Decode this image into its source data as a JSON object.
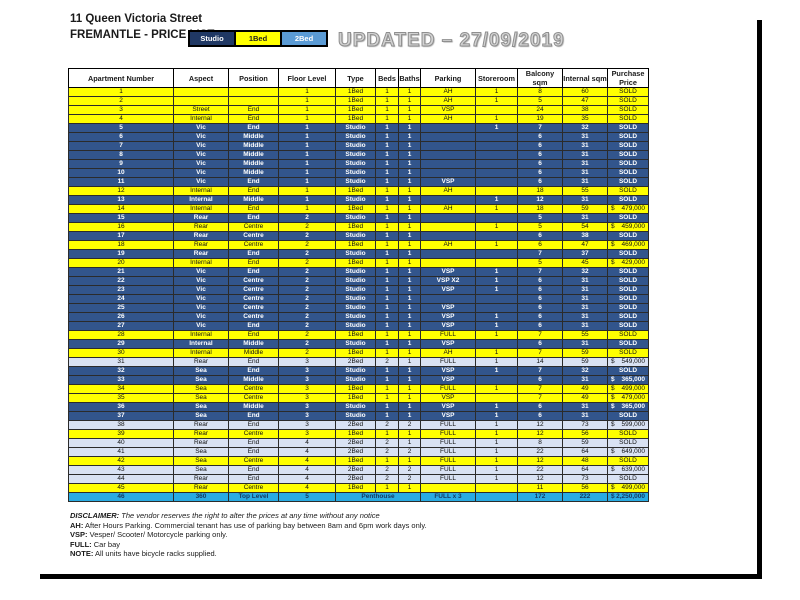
{
  "page": {
    "title_line1": "11 Queen Victoria Street",
    "title_line2": "FREMANTLE - PRICE LIST",
    "updated_stamp": "UPDATED – 27/09/2019",
    "legend": [
      {
        "label": "Studio",
        "bg": "#203864",
        "fg": "#FFFFFF"
      },
      {
        "label": "1Bed",
        "bg": "#FFFF00",
        "fg": "#1F1F1F"
      },
      {
        "label": "2Bed",
        "bg": "#5B9BD5",
        "fg": "#FFFFFF"
      }
    ],
    "colors": {
      "studio_row": "#32558C",
      "one_bed_row": "#FFFF00",
      "two_bed_row": "#D9E2F3",
      "penthouse_row": "#29ABE2"
    }
  },
  "table": {
    "columns": [
      "Apartment Number",
      "Aspect",
      "Position",
      "Floor Level",
      "Type",
      "Beds",
      "Baths",
      "Parking",
      "Storeroom",
      "Balcony sqm",
      "Internal sqm",
      "Purchase Price"
    ],
    "rows": [
      {
        "num": "1",
        "aspect": "",
        "position": "",
        "floor": "1",
        "type": "1Bed",
        "beds": "1",
        "baths": "1",
        "parking": "AH",
        "storeroom": "1",
        "balcony": "8",
        "internal": "60",
        "price": "SOLD"
      },
      {
        "num": "2",
        "aspect": "",
        "position": "",
        "floor": "1",
        "type": "1Bed",
        "beds": "1",
        "baths": "1",
        "parking": "AH",
        "storeroom": "1",
        "balcony": "5",
        "internal": "47",
        "price": "SOLD"
      },
      {
        "num": "3",
        "aspect": "Street",
        "position": "End",
        "floor": "1",
        "type": "1Bed",
        "beds": "1",
        "baths": "1",
        "parking": "VSP",
        "storeroom": "",
        "balcony": "24",
        "internal": "38",
        "price": "SOLD"
      },
      {
        "num": "4",
        "aspect": "Internal",
        "position": "End",
        "floor": "1",
        "type": "1Bed",
        "beds": "1",
        "baths": "1",
        "parking": "AH",
        "storeroom": "1",
        "balcony": "19",
        "internal": "35",
        "price": "SOLD"
      },
      {
        "num": "5",
        "aspect": "Vic",
        "position": "End",
        "floor": "1",
        "type": "Studio",
        "beds": "1",
        "baths": "1",
        "parking": "",
        "storeroom": "1",
        "balcony": "7",
        "internal": "32",
        "price": "SOLD"
      },
      {
        "num": "6",
        "aspect": "Vic",
        "position": "Middle",
        "floor": "1",
        "type": "Studio",
        "beds": "1",
        "baths": "1",
        "parking": "",
        "storeroom": "",
        "balcony": "6",
        "internal": "31",
        "price": "SOLD"
      },
      {
        "num": "7",
        "aspect": "Vic",
        "position": "Middle",
        "floor": "1",
        "type": "Studio",
        "beds": "1",
        "baths": "1",
        "parking": "",
        "storeroom": "",
        "balcony": "6",
        "internal": "31",
        "price": "SOLD"
      },
      {
        "num": "8",
        "aspect": "Vic",
        "position": "Middle",
        "floor": "1",
        "type": "Studio",
        "beds": "1",
        "baths": "1",
        "parking": "",
        "storeroom": "",
        "balcony": "6",
        "internal": "31",
        "price": "SOLD"
      },
      {
        "num": "9",
        "aspect": "Vic",
        "position": "Middle",
        "floor": "1",
        "type": "Studio",
        "beds": "1",
        "baths": "1",
        "parking": "",
        "storeroom": "",
        "balcony": "6",
        "internal": "31",
        "price": "SOLD"
      },
      {
        "num": "10",
        "aspect": "Vic",
        "position": "Middle",
        "floor": "1",
        "type": "Studio",
        "beds": "1",
        "baths": "1",
        "parking": "",
        "storeroom": "",
        "balcony": "6",
        "internal": "31",
        "price": "SOLD"
      },
      {
        "num": "11",
        "aspect": "Vic",
        "position": "End",
        "floor": "1",
        "type": "Studio",
        "beds": "1",
        "baths": "1",
        "parking": "VSP",
        "storeroom": "",
        "balcony": "6",
        "internal": "31",
        "price": "SOLD"
      },
      {
        "num": "12",
        "aspect": "Internal",
        "position": "End",
        "floor": "1",
        "type": "1Bed",
        "beds": "1",
        "baths": "1",
        "parking": "AH",
        "storeroom": "",
        "balcony": "18",
        "internal": "55",
        "price": "SOLD"
      },
      {
        "num": "13",
        "aspect": "Internal",
        "position": "Middle",
        "floor": "1",
        "type": "Studio",
        "beds": "1",
        "baths": "1",
        "parking": "",
        "storeroom": "1",
        "balcony": "12",
        "internal": "31",
        "price": "SOLD"
      },
      {
        "num": "14",
        "aspect": "Internal",
        "position": "End",
        "floor": "1",
        "type": "1Bed",
        "beds": "1",
        "baths": "1",
        "parking": "AH",
        "storeroom": "1",
        "balcony": "18",
        "internal": "59",
        "price": "$ 479,000"
      },
      {
        "num": "15",
        "aspect": "Rear",
        "position": "End",
        "floor": "2",
        "type": "Studio",
        "beds": "1",
        "baths": "1",
        "parking": "",
        "storeroom": "",
        "balcony": "5",
        "internal": "31",
        "price": "SOLD"
      },
      {
        "num": "16",
        "aspect": "Rear",
        "position": "Centre",
        "floor": "2",
        "type": "1Bed",
        "beds": "1",
        "baths": "1",
        "parking": "",
        "storeroom": "1",
        "balcony": "5",
        "internal": "54",
        "price": "$ 459,000"
      },
      {
        "num": "17",
        "aspect": "Rear",
        "position": "Centre",
        "floor": "2",
        "type": "Studio",
        "beds": "1",
        "baths": "1",
        "parking": "",
        "storeroom": "",
        "balcony": "6",
        "internal": "38",
        "price": "SOLD"
      },
      {
        "num": "18",
        "aspect": "Rear",
        "position": "Centre",
        "floor": "2",
        "type": "1Bed",
        "beds": "1",
        "baths": "1",
        "parking": "AH",
        "storeroom": "1",
        "balcony": "6",
        "internal": "47",
        "price": "$ 469,000"
      },
      {
        "num": "19",
        "aspect": "Rear",
        "position": "End",
        "floor": "2",
        "type": "Studio",
        "beds": "1",
        "baths": "1",
        "parking": "",
        "storeroom": "",
        "balcony": "7",
        "internal": "37",
        "price": "SOLD"
      },
      {
        "num": "20",
        "aspect": "Internal",
        "position": "End",
        "floor": "2",
        "type": "1Bed",
        "beds": "1",
        "baths": "1",
        "parking": "",
        "storeroom": "",
        "balcony": "5",
        "internal": "45",
        "price": "$ 429,000"
      },
      {
        "num": "21",
        "aspect": "Vic",
        "position": "End",
        "floor": "2",
        "type": "Studio",
        "beds": "1",
        "baths": "1",
        "parking": "VSP",
        "storeroom": "1",
        "balcony": "7",
        "internal": "32",
        "price": "SOLD"
      },
      {
        "num": "22",
        "aspect": "Vic",
        "position": "Centre",
        "floor": "2",
        "type": "Studio",
        "beds": "1",
        "baths": "1",
        "parking": "VSP X2",
        "storeroom": "1",
        "balcony": "6",
        "internal": "31",
        "price": "SOLD"
      },
      {
        "num": "23",
        "aspect": "Vic",
        "position": "Centre",
        "floor": "2",
        "type": "Studio",
        "beds": "1",
        "baths": "1",
        "parking": "VSP",
        "storeroom": "1",
        "balcony": "6",
        "internal": "31",
        "price": "SOLD"
      },
      {
        "num": "24",
        "aspect": "Vic",
        "position": "Centre",
        "floor": "2",
        "type": "Studio",
        "beds": "1",
        "baths": "1",
        "parking": "",
        "storeroom": "",
        "balcony": "6",
        "internal": "31",
        "price": "SOLD"
      },
      {
        "num": "25",
        "aspect": "Vic",
        "position": "Centre",
        "floor": "2",
        "type": "Studio",
        "beds": "1",
        "baths": "1",
        "parking": "VSP",
        "storeroom": "",
        "balcony": "6",
        "internal": "31",
        "price": "SOLD"
      },
      {
        "num": "26",
        "aspect": "Vic",
        "position": "Centre",
        "floor": "2",
        "type": "Studio",
        "beds": "1",
        "baths": "1",
        "parking": "VSP",
        "storeroom": "1",
        "balcony": "6",
        "internal": "31",
        "price": "SOLD"
      },
      {
        "num": "27",
        "aspect": "Vic",
        "position": "End",
        "floor": "2",
        "type": "Studio",
        "beds": "1",
        "baths": "1",
        "parking": "VSP",
        "storeroom": "1",
        "balcony": "6",
        "internal": "31",
        "price": "SOLD"
      },
      {
        "num": "28",
        "aspect": "Internal",
        "position": "End",
        "floor": "2",
        "type": "1Bed",
        "beds": "1",
        "baths": "1",
        "parking": "FULL",
        "storeroom": "1",
        "balcony": "7",
        "internal": "55",
        "price": "SOLD"
      },
      {
        "num": "29",
        "aspect": "Internal",
        "position": "Middle",
        "floor": "2",
        "type": "Studio",
        "beds": "1",
        "baths": "1",
        "parking": "VSP",
        "storeroom": "",
        "balcony": "6",
        "internal": "31",
        "price": "SOLD"
      },
      {
        "num": "30",
        "aspect": "Internal",
        "position": "Middle",
        "floor": "2",
        "type": "1Bed",
        "beds": "1",
        "baths": "1",
        "parking": "AH",
        "storeroom": "1",
        "balcony": "7",
        "internal": "59",
        "price": "SOLD"
      },
      {
        "num": "31",
        "aspect": "Rear",
        "position": "End",
        "floor": "3",
        "type": "2Bed",
        "beds": "2",
        "baths": "1",
        "parking": "FULL",
        "storeroom": "1",
        "balcony": "14",
        "internal": "59",
        "price": "$ 549,000"
      },
      {
        "num": "32",
        "aspect": "Sea",
        "position": "End",
        "floor": "3",
        "type": "Studio",
        "beds": "1",
        "baths": "1",
        "parking": "VSP",
        "storeroom": "1",
        "balcony": "7",
        "internal": "32",
        "price": "SOLD"
      },
      {
        "num": "33",
        "aspect": "Sea",
        "position": "Middle",
        "floor": "3",
        "type": "Studio",
        "beds": "1",
        "baths": "1",
        "parking": "VSP",
        "storeroom": "",
        "balcony": "6",
        "internal": "31",
        "price": "$ 365,000"
      },
      {
        "num": "34",
        "aspect": "Sea",
        "position": "Centre",
        "floor": "3",
        "type": "1Bed",
        "beds": "1",
        "baths": "1",
        "parking": "FULL",
        "storeroom": "1",
        "balcony": "7",
        "internal": "49",
        "price": "$ 499,000"
      },
      {
        "num": "35",
        "aspect": "Sea",
        "position": "Centre",
        "floor": "3",
        "type": "1Bed",
        "beds": "1",
        "baths": "1",
        "parking": "VSP",
        "storeroom": "",
        "balcony": "7",
        "internal": "49",
        "price": "$ 479,000"
      },
      {
        "num": "36",
        "aspect": "Sea",
        "position": "Middle",
        "floor": "3",
        "type": "Studio",
        "beds": "1",
        "baths": "1",
        "parking": "VSP",
        "storeroom": "1",
        "balcony": "6",
        "internal": "31",
        "price": "$ 365,000"
      },
      {
        "num": "37",
        "aspect": "Sea",
        "position": "End",
        "floor": "3",
        "type": "Studio",
        "beds": "1",
        "baths": "1",
        "parking": "VSP",
        "storeroom": "1",
        "balcony": "6",
        "internal": "31",
        "price": "SOLD"
      },
      {
        "num": "38",
        "aspect": "Rear",
        "position": "End",
        "floor": "3",
        "type": "2Bed",
        "beds": "2",
        "baths": "2",
        "parking": "FULL",
        "storeroom": "1",
        "balcony": "12",
        "internal": "73",
        "price": "$ 599,000"
      },
      {
        "num": "39",
        "aspect": "Rear",
        "position": "Centre",
        "floor": "3",
        "type": "1Bed",
        "beds": "1",
        "baths": "1",
        "parking": "FULL",
        "storeroom": "1",
        "balcony": "12",
        "internal": "56",
        "price": "SOLD"
      },
      {
        "num": "40",
        "aspect": "Rear",
        "position": "End",
        "floor": "4",
        "type": "2Bed",
        "beds": "2",
        "baths": "1",
        "parking": "FULL",
        "storeroom": "1",
        "balcony": "8",
        "internal": "59",
        "price": "SOLD"
      },
      {
        "num": "41",
        "aspect": "Sea",
        "position": "End",
        "floor": "4",
        "type": "2Bed",
        "beds": "2",
        "baths": "2",
        "parking": "FULL",
        "storeroom": "1",
        "balcony": "22",
        "internal": "64",
        "price": "$ 649,000"
      },
      {
        "num": "42",
        "aspect": "Sea",
        "position": "Centre",
        "floor": "4",
        "type": "1Bed",
        "beds": "1",
        "baths": "1",
        "parking": "FULL",
        "storeroom": "1",
        "balcony": "12",
        "internal": "48",
        "price": "SOLD"
      },
      {
        "num": "43",
        "aspect": "Sea",
        "position": "End",
        "floor": "4",
        "type": "2Bed",
        "beds": "2",
        "baths": "2",
        "parking": "FULL",
        "storeroom": "1",
        "balcony": "22",
        "internal": "64",
        "price": "$ 639,000"
      },
      {
        "num": "44",
        "aspect": "Rear",
        "position": "End",
        "floor": "4",
        "type": "2Bed",
        "beds": "2",
        "baths": "2",
        "parking": "FULL",
        "storeroom": "1",
        "balcony": "12",
        "internal": "73",
        "price": "SOLD"
      },
      {
        "num": "45",
        "aspect": "Rear",
        "position": "Centre",
        "floor": "4",
        "type": "1Bed",
        "beds": "1",
        "baths": "1",
        "parking": "",
        "storeroom": "",
        "balcony": "11",
        "internal": "56",
        "price": "$ 499,000"
      },
      {
        "num": "46",
        "aspect": "360",
        "position": "Top Level",
        "floor": "5",
        "type": "Penthouse",
        "beds": "",
        "baths": "",
        "parking": "FULL x 3",
        "storeroom": "",
        "balcony": "172",
        "internal": "222",
        "price": "$ 2,250,000",
        "span_type": true
      }
    ]
  },
  "notes": [
    {
      "label": "DISCLAIMER:",
      "text": " The vendor reserves the right to alter the prices at any time without any notice",
      "italic": true
    },
    {
      "label": "AH:",
      "text": " After Hours Parking. Commercial tenant has use of parking bay between 8am and 6pm work days only.",
      "italic": false
    },
    {
      "label": "VSP:",
      "text": " Vesper/ Scooter/ Motorcycle parking only.",
      "italic": false
    },
    {
      "label": "FULL:",
      "text": " Car bay",
      "italic": false
    },
    {
      "label": "NOTE:",
      "text": " All units have bicycle racks supplied.",
      "italic": false
    }
  ]
}
